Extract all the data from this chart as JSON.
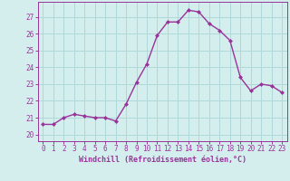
{
  "x": [
    0,
    1,
    2,
    3,
    4,
    5,
    6,
    7,
    8,
    9,
    10,
    11,
    12,
    13,
    14,
    15,
    16,
    17,
    18,
    19,
    20,
    21,
    22,
    23
  ],
  "y": [
    20.6,
    20.6,
    21.0,
    21.2,
    21.1,
    21.0,
    21.0,
    20.8,
    21.8,
    23.1,
    24.2,
    25.9,
    26.7,
    26.7,
    27.4,
    27.3,
    26.6,
    26.2,
    25.6,
    23.4,
    22.6,
    23.0,
    22.9,
    22.5
  ],
  "line_color": "#993399",
  "marker": "D",
  "marker_size": 2,
  "line_width": 1.0,
  "bg_color": "#d4eeee",
  "grid_color": "#b0d8d8",
  "xlabel": "Windchill (Refroidissement éolien,°C)",
  "xlabel_color": "#993399",
  "tick_color": "#993399",
  "ylabel_ticks": [
    20,
    21,
    22,
    23,
    24,
    25,
    26,
    27
  ],
  "ylim": [
    19.6,
    27.9
  ],
  "xlim": [
    -0.5,
    23.5
  ],
  "tick_fontsize": 5.5,
  "xlabel_fontsize": 6.0
}
